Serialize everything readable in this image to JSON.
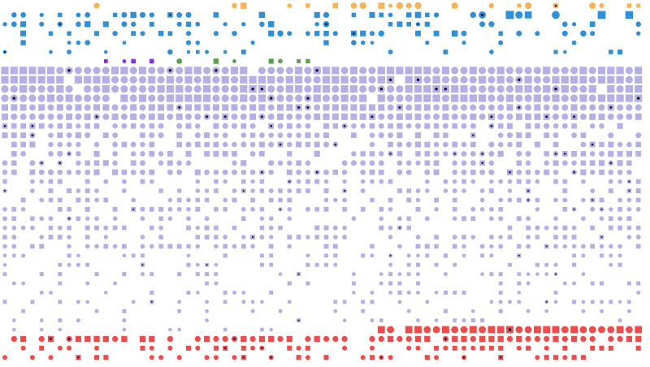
{
  "chart_data": {
    "type": "scatter",
    "title": "",
    "xlabel": "",
    "ylabel": "",
    "grid": false,
    "legend": "none",
    "columns": 70,
    "rows": 39,
    "encoding": {
      "row_band": "category",
      "mark_size": "magnitude",
      "shape": "kind (circle or square)",
      "dark_center": "flagged"
    },
    "bands": [
      {
        "name": "top-yellow",
        "color": "#f6b35a",
        "rows": [
          0,
          0
        ]
      },
      {
        "name": "top-blue",
        "color": "#2f8fd8",
        "rows": [
          1,
          5
        ]
      },
      {
        "name": "upper-purple",
        "color": "#8a2be2",
        "rows": [
          6,
          6
        ]
      },
      {
        "name": "upper-green",
        "color": "#5aa04a",
        "rows": [
          6,
          6
        ]
      },
      {
        "name": "lavender-body",
        "color": "#b4b0e6",
        "rows": [
          6,
          35
        ]
      },
      {
        "name": "bottom-red",
        "color": "#ec4d4b",
        "rows": [
          36,
          38
        ]
      }
    ],
    "dot_color": "#161a3b",
    "seed": 20240611
  }
}
